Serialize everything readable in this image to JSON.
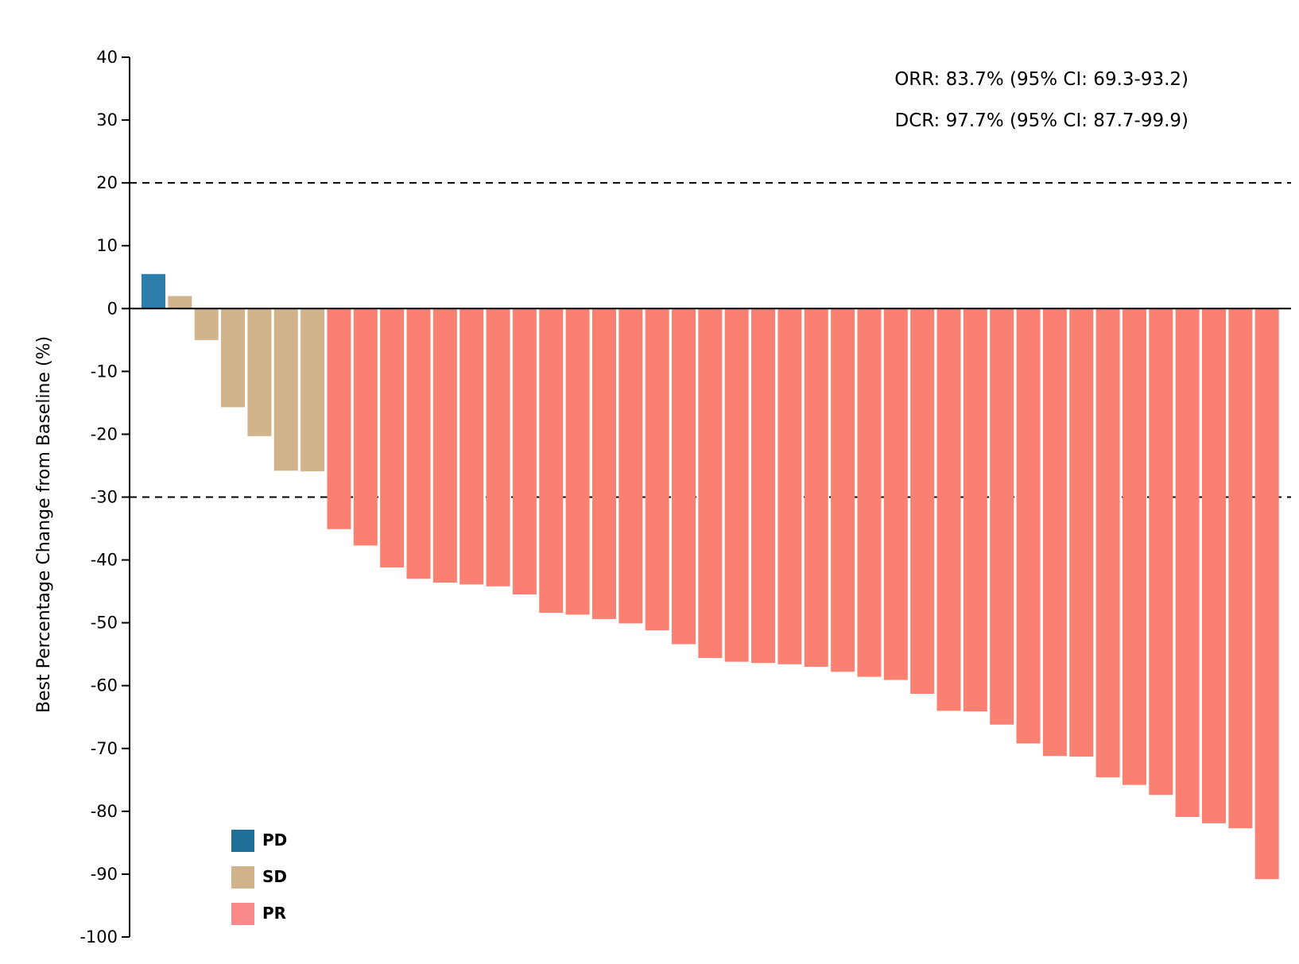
{
  "chart_data": {
    "type": "bar",
    "title": "",
    "xlabel": "",
    "ylabel": "Best Percentage Change from Baseline (%)",
    "ylim": [
      -100,
      40
    ],
    "yticks": [
      40,
      30,
      20,
      10,
      0,
      -10,
      -20,
      -30,
      -40,
      -50,
      -60,
      -70,
      -80,
      -90,
      -100
    ],
    "grid": false,
    "reference_lines": [
      20,
      -30
    ],
    "annotations": [
      "ORR: 83.7% (95% CI: 69.3-93.2)",
      "DCR: 97.7% (95% CI: 87.7-99.9)"
    ],
    "legend": {
      "position": "bottom-left",
      "items": [
        {
          "label": "PD",
          "color": "#1f6f99"
        },
        {
          "label": "SD",
          "color": "#d2b48c"
        },
        {
          "label": "PR",
          "color": "#fa8072"
        }
      ]
    },
    "colors": {
      "PD": "#2e7eab",
      "SD": "#d2b48c",
      "PR": "#fa8072"
    },
    "bars": [
      {
        "value": 5.5,
        "response": "PD"
      },
      {
        "value": 2.0,
        "response": "SD"
      },
      {
        "value": -5.0,
        "response": "SD"
      },
      {
        "value": -15.7,
        "response": "SD"
      },
      {
        "value": -20.3,
        "response": "SD"
      },
      {
        "value": -25.8,
        "response": "SD"
      },
      {
        "value": -25.9,
        "response": "SD"
      },
      {
        "value": -35.1,
        "response": "PR"
      },
      {
        "value": -37.7,
        "response": "PR"
      },
      {
        "value": -41.2,
        "response": "PR"
      },
      {
        "value": -43.0,
        "response": "PR"
      },
      {
        "value": -43.6,
        "response": "PR"
      },
      {
        "value": -43.9,
        "response": "PR"
      },
      {
        "value": -44.2,
        "response": "PR"
      },
      {
        "value": -45.5,
        "response": "PR"
      },
      {
        "value": -48.4,
        "response": "PR"
      },
      {
        "value": -48.7,
        "response": "PR"
      },
      {
        "value": -49.4,
        "response": "PR"
      },
      {
        "value": -50.1,
        "response": "PR"
      },
      {
        "value": -51.2,
        "response": "PR"
      },
      {
        "value": -53.4,
        "response": "PR"
      },
      {
        "value": -55.6,
        "response": "PR"
      },
      {
        "value": -56.2,
        "response": "PR"
      },
      {
        "value": -56.4,
        "response": "PR"
      },
      {
        "value": -56.6,
        "response": "PR"
      },
      {
        "value": -57.0,
        "response": "PR"
      },
      {
        "value": -57.8,
        "response": "PR"
      },
      {
        "value": -58.6,
        "response": "PR"
      },
      {
        "value": -59.1,
        "response": "PR"
      },
      {
        "value": -61.3,
        "response": "PR"
      },
      {
        "value": -64.0,
        "response": "PR"
      },
      {
        "value": -64.1,
        "response": "PR"
      },
      {
        "value": -66.2,
        "response": "PR"
      },
      {
        "value": -69.2,
        "response": "PR"
      },
      {
        "value": -71.2,
        "response": "PR"
      },
      {
        "value": -71.3,
        "response": "PR"
      },
      {
        "value": -74.6,
        "response": "PR"
      },
      {
        "value": -75.8,
        "response": "PR"
      },
      {
        "value": -77.4,
        "response": "PR"
      },
      {
        "value": -80.9,
        "response": "PR"
      },
      {
        "value": -81.9,
        "response": "PR"
      },
      {
        "value": -82.7,
        "response": "PR"
      },
      {
        "value": -90.8,
        "response": "PR"
      }
    ]
  }
}
